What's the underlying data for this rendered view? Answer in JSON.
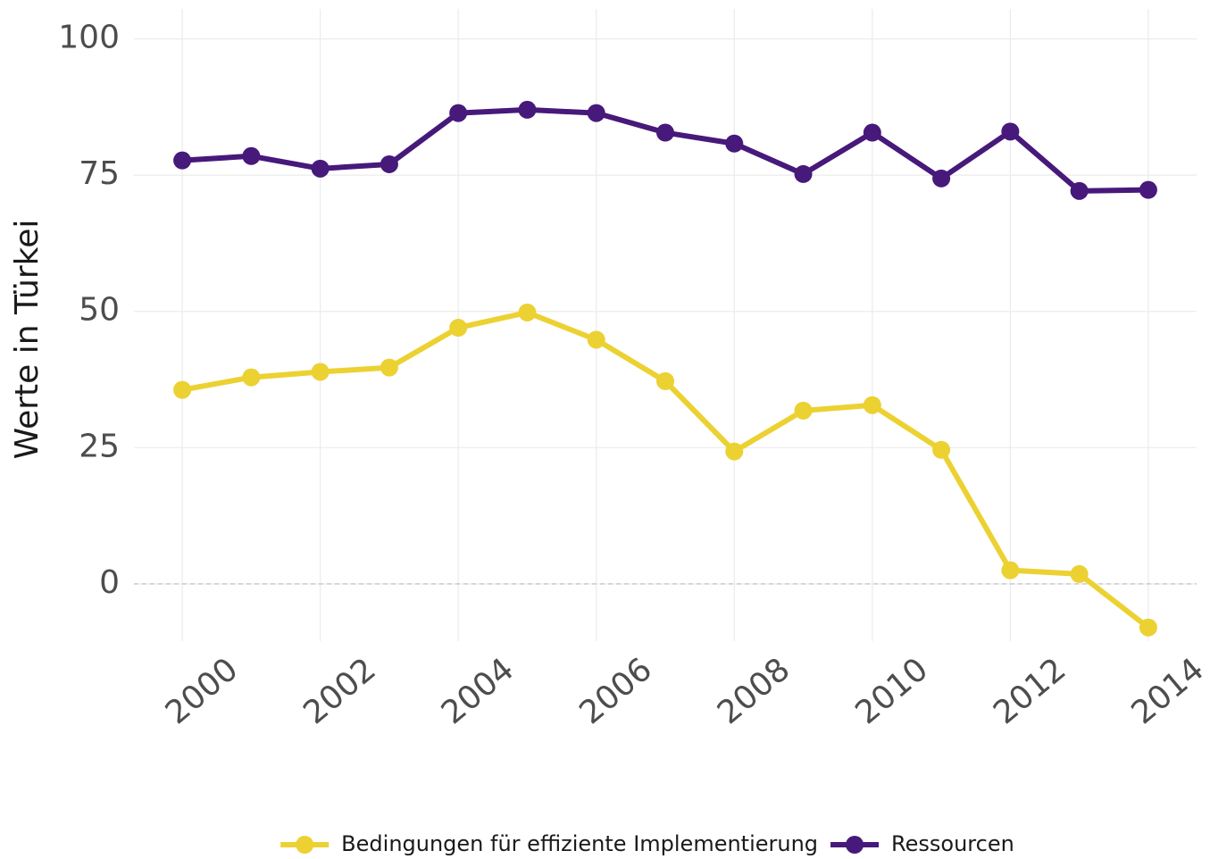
{
  "chart_data": {
    "type": "line",
    "y_label": "Werte in Türkei",
    "x": [
      2000,
      2001,
      2002,
      2003,
      2004,
      2005,
      2006,
      2007,
      2008,
      2009,
      2010,
      2011,
      2012,
      2013,
      2014
    ],
    "series": [
      {
        "name": "Bedingungen für effiziente Implementierung",
        "color": "#ecd132",
        "values": [
          35.6,
          37.9,
          38.9,
          39.7,
          47.0,
          49.8,
          44.8,
          37.2,
          24.3,
          31.8,
          32.8,
          24.6,
          2.5,
          1.8,
          -8.0
        ]
      },
      {
        "name": "Ressourcen",
        "color": "#46197a",
        "values": [
          77.7,
          78.5,
          76.2,
          77.0,
          86.4,
          87.0,
          86.4,
          82.8,
          80.8,
          75.2,
          82.8,
          74.4,
          83.0,
          72.1,
          72.3
        ]
      }
    ],
    "xlim": [
      1999.3,
      2014.7
    ],
    "xticks": [
      2000,
      2002,
      2004,
      2006,
      2008,
      2010,
      2012,
      2014
    ],
    "ylim": [
      -10.5,
      105.5
    ],
    "yticks": [
      0,
      25,
      50,
      75,
      100
    ],
    "grid": true,
    "zero_line": true,
    "legend": "bottom"
  }
}
